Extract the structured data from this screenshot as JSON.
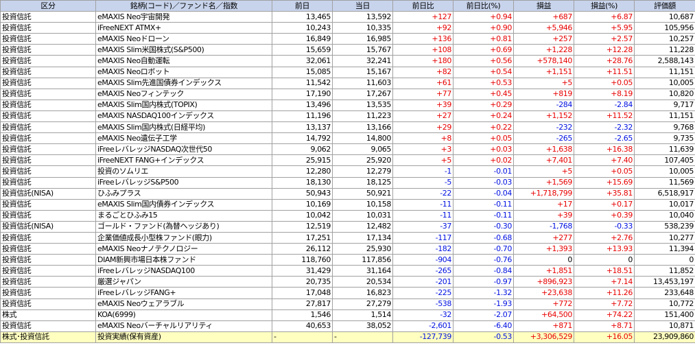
{
  "headers": [
    "区分",
    "銘柄(コード)／ファンド名／指数",
    "前日",
    "当日",
    "前日比",
    "前日比(%)",
    "損益",
    "損益(%)",
    "評価額"
  ],
  "colors": {
    "header_bg": "#c8d4ec",
    "positive": "#e80000",
    "negative": "#0010e0",
    "total_bg": "#ffffc0",
    "grid": "#a0a0a0"
  },
  "rows": [
    {
      "cat": "投資信託",
      "name": "eMAXIS Neo宇宙開発",
      "prev": "13,465",
      "cur": "13,592",
      "chg": "+127",
      "chgp": "+0.94",
      "pl": "+687",
      "plp": "+6.87",
      "val": "10,687"
    },
    {
      "cat": "投資信託",
      "name": "iFreeNEXT ATMX+",
      "prev": "10,243",
      "cur": "10,335",
      "chg": "+92",
      "chgp": "+0.90",
      "pl": "+5,946",
      "plp": "+5.95",
      "val": "105,956"
    },
    {
      "cat": "投資信託",
      "name": "eMAXIS Neoドローン",
      "prev": "16,849",
      "cur": "16,985",
      "chg": "+136",
      "chgp": "+0.81",
      "pl": "+257",
      "plp": "+2.57",
      "val": "10,257"
    },
    {
      "cat": "投資信託",
      "name": "eMAXIS Slim米国株式(S&P500)",
      "prev": "15,659",
      "cur": "15,767",
      "chg": "+108",
      "chgp": "+0.69",
      "pl": "+1,228",
      "plp": "+12.28",
      "val": "11,228"
    },
    {
      "cat": "投資信託",
      "name": "eMAXIS Neo自動運転",
      "prev": "32,061",
      "cur": "32,241",
      "chg": "+180",
      "chgp": "+0.56",
      "pl": "+578,140",
      "plp": "+28.76",
      "val": "2,588,143"
    },
    {
      "cat": "投資信託",
      "name": "eMAXIS Neoロボット",
      "prev": "15,085",
      "cur": "15,167",
      "chg": "+82",
      "chgp": "+0.54",
      "pl": "+1,151",
      "plp": "+11.51",
      "val": "11,151"
    },
    {
      "cat": "投資信託",
      "name": "eMAXIS Slim先進国債券インデックス",
      "prev": "11,542",
      "cur": "11,603",
      "chg": "+61",
      "chgp": "+0.53",
      "pl": "+5",
      "plp": "+0.05",
      "val": "10,005"
    },
    {
      "cat": "投資信託",
      "name": "eMAXIS Neoフィンテック",
      "prev": "17,190",
      "cur": "17,267",
      "chg": "+77",
      "chgp": "+0.45",
      "pl": "+819",
      "plp": "+8.19",
      "val": "10,820"
    },
    {
      "cat": "投資信託",
      "name": "eMAXIS Slim国内株式(TOPIX)",
      "prev": "13,496",
      "cur": "13,535",
      "chg": "+39",
      "chgp": "+0.29",
      "pl": "-284",
      "plp": "-2.84",
      "val": "9,717"
    },
    {
      "cat": "投資信託",
      "name": "eMAXIS NASDAQ100インデックス",
      "prev": "11,196",
      "cur": "11,223",
      "chg": "+27",
      "chgp": "+0.24",
      "pl": "+1,152",
      "plp": "+11.52",
      "val": "11,151"
    },
    {
      "cat": "投資信託",
      "name": "eMAXIS Slim国内株式(日経平均)",
      "prev": "13,137",
      "cur": "13,166",
      "chg": "+29",
      "chgp": "+0.22",
      "pl": "-232",
      "plp": "-2.32",
      "val": "9,768"
    },
    {
      "cat": "投資信託",
      "name": "eMAXIS Neo遺伝子工学",
      "prev": "14,792",
      "cur": "14,800",
      "chg": "+8",
      "chgp": "+0.05",
      "pl": "-265",
      "plp": "-2.65",
      "val": "9,735"
    },
    {
      "cat": "投資信託",
      "name": "iFreeレバレッジNASDAQ次世代50",
      "prev": "9,062",
      "cur": "9,065",
      "chg": "+3",
      "chgp": "+0.03",
      "pl": "+1,638",
      "plp": "+16.38",
      "val": "11,639"
    },
    {
      "cat": "投資信託",
      "name": "iFreeNEXT FANG+インデックス",
      "prev": "25,915",
      "cur": "25,920",
      "chg": "+5",
      "chgp": "+0.02",
      "pl": "+7,401",
      "plp": "+7.40",
      "val": "107,405"
    },
    {
      "cat": "投資信託",
      "name": "投資のソムリエ",
      "prev": "12,280",
      "cur": "12,279",
      "chg": "-1",
      "chgp": "-0.01",
      "pl": "+5",
      "plp": "+0.05",
      "val": "10,005"
    },
    {
      "cat": "投資信託",
      "name": "iFreeレバレッジS&P500",
      "prev": "18,130",
      "cur": "18,125",
      "chg": "-5",
      "chgp": "-0.03",
      "pl": "+1,569",
      "plp": "+15.69",
      "val": "11,569"
    },
    {
      "cat": "投資信託(NISA)",
      "name": "ひふみプラス",
      "prev": "50,943",
      "cur": "50,921",
      "chg": "-22",
      "chgp": "-0.04",
      "pl": "+1,718,799",
      "plp": "+35.81",
      "val": "6,518,917"
    },
    {
      "cat": "投資信託",
      "name": "eMAXIS Slim国内債券インデックス",
      "prev": "10,169",
      "cur": "10,158",
      "chg": "-11",
      "chgp": "-0.11",
      "pl": "+17",
      "plp": "+0.17",
      "val": "10,017"
    },
    {
      "cat": "投資信託",
      "name": "まるごとひふみ15",
      "prev": "10,042",
      "cur": "10,031",
      "chg": "-11",
      "chgp": "-0.11",
      "pl": "+39",
      "plp": "+0.39",
      "val": "10,040"
    },
    {
      "cat": "投資信託(NISA)",
      "name": "ゴールド・ファンド(為替ヘッジあり)",
      "prev": "12,519",
      "cur": "12,482",
      "chg": "-37",
      "chgp": "-0.30",
      "pl": "-1,768",
      "plp": "-0.33",
      "val": "538,239"
    },
    {
      "cat": "投資信託",
      "name": "企業価値成長小型株ファンド(眼力)",
      "prev": "17,251",
      "cur": "17,134",
      "chg": "-117",
      "chgp": "-0.68",
      "pl": "+277",
      "plp": "+2.76",
      "val": "10,277"
    },
    {
      "cat": "投資信託",
      "name": "eMAXIS Neoナノテクノロジー",
      "prev": "26,112",
      "cur": "25,930",
      "chg": "-182",
      "chgp": "-0.70",
      "pl": "+1,393",
      "plp": "+13.93",
      "val": "11,394"
    },
    {
      "cat": "投資信託",
      "name": "DIAM新興市場日本株ファンド",
      "prev": "118,760",
      "cur": "117,856",
      "chg": "-904",
      "chgp": "-0.76",
      "pl": "0",
      "plp": "0",
      "val": "0"
    },
    {
      "cat": "投資信託",
      "name": "iFreeレバレッジNASDAQ100",
      "prev": "31,429",
      "cur": "31,164",
      "chg": "-265",
      "chgp": "-0.84",
      "pl": "+1,851",
      "plp": "+18.51",
      "val": "11,852"
    },
    {
      "cat": "投資信託",
      "name": "厳選ジャパン",
      "prev": "20,735",
      "cur": "20,534",
      "chg": "-201",
      "chgp": "-0.97",
      "pl": "+896,923",
      "plp": "+7.14",
      "val": "13,453,197"
    },
    {
      "cat": "投資信託",
      "name": "iFreeレバレッジFANG+",
      "prev": "17,048",
      "cur": "16,823",
      "chg": "-225",
      "chgp": "-1.32",
      "pl": "+23,638",
      "plp": "+11.26",
      "val": "233,648"
    },
    {
      "cat": "投資信託",
      "name": "eMAXIS Neoウェアラブル",
      "prev": "27,817",
      "cur": "27,279",
      "chg": "-538",
      "chgp": "-1.93",
      "pl": "+772",
      "plp": "+7.72",
      "val": "10,772"
    },
    {
      "cat": "株式",
      "name": "KOA(6999)",
      "prev": "1,546",
      "cur": "1,514",
      "chg": "-32",
      "chgp": "-2.07",
      "pl": "+64,500",
      "plp": "+74.22",
      "val": "151,400"
    },
    {
      "cat": "投資信託",
      "name": "eMAXIS Neoバーチャルリアリティ",
      "prev": "40,653",
      "cur": "38,052",
      "chg": "-2,601",
      "chgp": "-6.40",
      "pl": "+871",
      "plp": "+8.71",
      "val": "10,871"
    }
  ],
  "total": {
    "cat": "株式･投資信託",
    "name": "投資実績(保有資産)",
    "prev": "-",
    "cur": "-",
    "chg": "-127,739",
    "chgp": "-0.53",
    "pl": "+3,306,529",
    "plp": "+16.05",
    "val": "23,909,860"
  }
}
